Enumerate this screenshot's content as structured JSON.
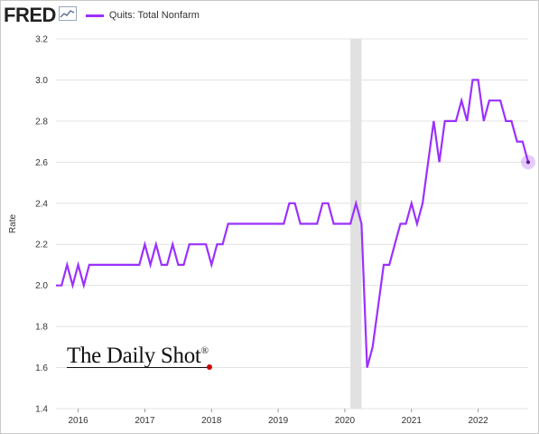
{
  "header": {
    "logo_text": "FRED",
    "logo_icon": "line-chart-icon"
  },
  "chart_data": {
    "type": "line",
    "ylabel": "Rate",
    "ylim": [
      1.4,
      3.2
    ],
    "y_ticks": [
      "1.4",
      "1.6",
      "1.8",
      "2.0",
      "2.2",
      "2.4",
      "2.6",
      "2.8",
      "3.0",
      "3.2"
    ],
    "x_tick_labels": [
      "2016",
      "2017",
      "2018",
      "2019",
      "2020",
      "2021",
      "2022"
    ],
    "x_start": "2015-09",
    "x_end": "2022-10",
    "recession_band": [
      "2020-02",
      "2020-04"
    ],
    "grid": "horizontal",
    "series": [
      {
        "name": "Quits: Total Nonfarm",
        "color": "#9b30ff",
        "x": [
          "2015-09",
          "2015-10",
          "2015-11",
          "2015-12",
          "2016-01",
          "2016-02",
          "2016-03",
          "2016-04",
          "2016-05",
          "2016-06",
          "2016-07",
          "2016-08",
          "2016-09",
          "2016-10",
          "2016-11",
          "2016-12",
          "2017-01",
          "2017-02",
          "2017-03",
          "2017-04",
          "2017-05",
          "2017-06",
          "2017-07",
          "2017-08",
          "2017-09",
          "2017-10",
          "2017-11",
          "2017-12",
          "2018-01",
          "2018-02",
          "2018-03",
          "2018-04",
          "2018-05",
          "2018-06",
          "2018-07",
          "2018-08",
          "2018-09",
          "2018-10",
          "2018-11",
          "2018-12",
          "2019-01",
          "2019-02",
          "2019-03",
          "2019-04",
          "2019-05",
          "2019-06",
          "2019-07",
          "2019-08",
          "2019-09",
          "2019-10",
          "2019-11",
          "2019-12",
          "2020-01",
          "2020-02",
          "2020-03",
          "2020-04",
          "2020-05",
          "2020-06",
          "2020-07",
          "2020-08",
          "2020-09",
          "2020-10",
          "2020-11",
          "2020-12",
          "2021-01",
          "2021-02",
          "2021-03",
          "2021-04",
          "2021-05",
          "2021-06",
          "2021-07",
          "2021-08",
          "2021-09",
          "2021-10",
          "2021-11",
          "2021-12",
          "2022-01",
          "2022-02",
          "2022-03",
          "2022-04",
          "2022-05",
          "2022-06",
          "2022-07",
          "2022-08",
          "2022-09",
          "2022-10"
        ],
        "values": [
          2.0,
          2.0,
          2.1,
          2.0,
          2.1,
          2.0,
          2.1,
          2.1,
          2.1,
          2.1,
          2.1,
          2.1,
          2.1,
          2.1,
          2.1,
          2.1,
          2.2,
          2.1,
          2.2,
          2.1,
          2.1,
          2.2,
          2.1,
          2.1,
          2.2,
          2.2,
          2.2,
          2.2,
          2.1,
          2.2,
          2.2,
          2.3,
          2.3,
          2.3,
          2.3,
          2.3,
          2.3,
          2.3,
          2.3,
          2.3,
          2.3,
          2.3,
          2.4,
          2.4,
          2.3,
          2.3,
          2.3,
          2.3,
          2.4,
          2.4,
          2.3,
          2.3,
          2.3,
          2.3,
          2.4,
          2.3,
          1.6,
          1.7,
          1.9,
          2.1,
          2.1,
          2.2,
          2.3,
          2.3,
          2.4,
          2.3,
          2.4,
          2.6,
          2.8,
          2.6,
          2.8,
          2.8,
          2.8,
          2.9,
          2.8,
          3.0,
          3.0,
          2.8,
          2.9,
          2.9,
          2.9,
          2.8,
          2.8,
          2.7,
          2.7,
          2.6
        ]
      }
    ]
  },
  "watermark": {
    "text": "The Daily Shot",
    "mark": "®"
  }
}
